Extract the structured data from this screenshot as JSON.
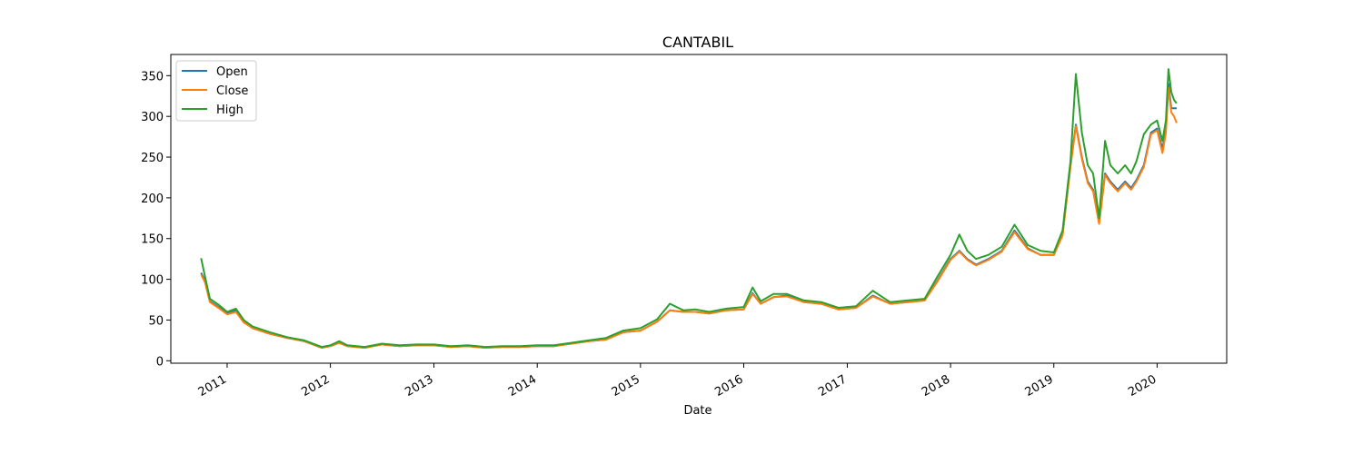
{
  "chart_data": {
    "type": "line",
    "title": "CANTABIL",
    "xlabel": "Date",
    "ylabel": "",
    "x_axis_type": "date",
    "xlim": [
      "2010-06-16",
      "2020-09-03"
    ],
    "ylim": [
      -3,
      376
    ],
    "x_ticks": [
      "2011",
      "2012",
      "2013",
      "2014",
      "2015",
      "2016",
      "2017",
      "2018",
      "2019",
      "2020"
    ],
    "y_ticks": [
      0,
      50,
      100,
      150,
      200,
      250,
      300,
      350
    ],
    "grid": false,
    "legend_position": "upper-left",
    "x": [
      "2010-10-01",
      "2010-10-15",
      "2010-11-01",
      "2010-12-01",
      "2011-01-01",
      "2011-02-01",
      "2011-03-01",
      "2011-04-01",
      "2011-06-01",
      "2011-08-01",
      "2011-10-01",
      "2011-12-01",
      "2012-01-01",
      "2012-02-01",
      "2012-03-01",
      "2012-05-01",
      "2012-07-01",
      "2012-09-01",
      "2012-11-01",
      "2013-01-01",
      "2013-03-01",
      "2013-05-01",
      "2013-07-01",
      "2013-09-01",
      "2013-11-01",
      "2014-01-01",
      "2014-03-01",
      "2014-05-01",
      "2014-07-01",
      "2014-09-01",
      "2014-11-01",
      "2015-01-01",
      "2015-03-01",
      "2015-04-15",
      "2015-06-01",
      "2015-07-15",
      "2015-09-01",
      "2015-11-01",
      "2016-01-01",
      "2016-02-01",
      "2016-03-01",
      "2016-04-15",
      "2016-06-01",
      "2016-08-01",
      "2016-10-01",
      "2016-12-01",
      "2017-02-01",
      "2017-04-01",
      "2017-06-01",
      "2017-08-01",
      "2017-10-01",
      "2017-11-15",
      "2018-01-01",
      "2018-02-01",
      "2018-03-01",
      "2018-04-01",
      "2018-05-15",
      "2018-07-01",
      "2018-08-15",
      "2018-10-01",
      "2018-11-15",
      "2019-01-01",
      "2019-02-01",
      "2019-03-01",
      "2019-03-20",
      "2019-04-10",
      "2019-05-01",
      "2019-05-20",
      "2019-06-10",
      "2019-07-01",
      "2019-07-20",
      "2019-08-15",
      "2019-09-10",
      "2019-10-01",
      "2019-10-20",
      "2019-11-15",
      "2019-12-10",
      "2020-01-01",
      "2020-01-20",
      "2020-02-01",
      "2020-02-10",
      "2020-02-20",
      "2020-03-01",
      "2020-03-10"
    ],
    "series": [
      {
        "name": "Open",
        "color": "#1f77b4",
        "values": [
          108,
          98,
          73,
          66,
          58,
          62,
          48,
          40,
          33,
          28,
          24,
          16,
          18,
          22,
          18,
          16,
          20,
          18,
          19,
          19,
          17,
          18,
          16,
          17,
          17,
          18,
          18,
          21,
          24,
          26,
          35,
          37,
          48,
          62,
          60,
          60,
          58,
          62,
          63,
          83,
          70,
          78,
          80,
          72,
          70,
          63,
          65,
          80,
          70,
          72,
          74,
          98,
          125,
          135,
          125,
          118,
          125,
          135,
          160,
          138,
          130,
          130,
          155,
          240,
          290,
          250,
          220,
          210,
          170,
          230,
          220,
          210,
          220,
          212,
          222,
          240,
          280,
          285,
          260,
          285,
          340,
          310,
          310,
          310
        ],
        "note": ""
      },
      {
        "name": "Close",
        "color": "#ff7f0e",
        "values": [
          106,
          96,
          72,
          65,
          57,
          60,
          47,
          40,
          33,
          28,
          24,
          16,
          18,
          22,
          18,
          16,
          20,
          18,
          19,
          19,
          17,
          18,
          16,
          17,
          17,
          18,
          18,
          21,
          24,
          26,
          35,
          37,
          48,
          62,
          60,
          60,
          58,
          62,
          63,
          82,
          70,
          78,
          79,
          72,
          70,
          63,
          65,
          79,
          70,
          72,
          74,
          97,
          124,
          134,
          124,
          117,
          124,
          134,
          158,
          137,
          130,
          130,
          154,
          238,
          288,
          248,
          218,
          208,
          168,
          228,
          218,
          208,
          218,
          210,
          220,
          238,
          278,
          283,
          255,
          280,
          335,
          305,
          300,
          292
        ]
      },
      {
        "name": "High",
        "color": "#2ca02c",
        "values": [
          126,
          103,
          76,
          69,
          60,
          64,
          50,
          42,
          35,
          29,
          25,
          17,
          19,
          24,
          19,
          17,
          21,
          19,
          20,
          20,
          18,
          19,
          17,
          18,
          18,
          19,
          19,
          22,
          25,
          28,
          37,
          40,
          51,
          70,
          62,
          63,
          60,
          64,
          66,
          90,
          73,
          82,
          82,
          74,
          72,
          65,
          67,
          86,
          72,
          74,
          76,
          103,
          130,
          155,
          135,
          125,
          130,
          140,
          167,
          142,
          135,
          133,
          160,
          245,
          352,
          280,
          240,
          230,
          175,
          270,
          240,
          230,
          240,
          230,
          245,
          278,
          290,
          295,
          270,
          295,
          358,
          330,
          320,
          316
        ]
      }
    ]
  }
}
